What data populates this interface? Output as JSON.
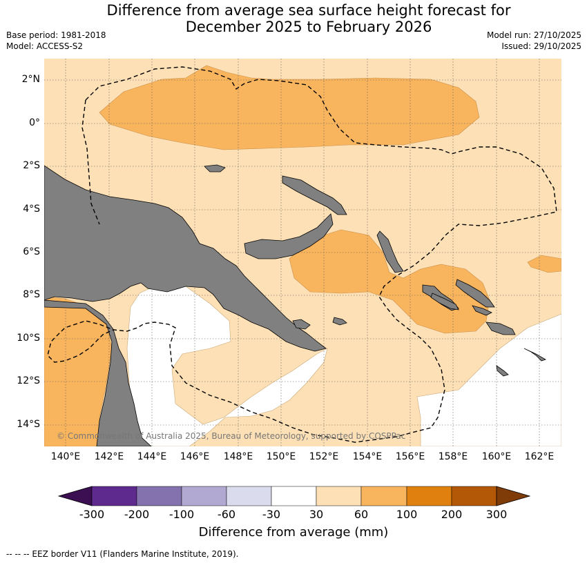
{
  "header": {
    "title_line1": "Difference from average sea surface height forecast for",
    "title_line2": "December 2025 to February 2026",
    "base_period": "Base period: 1981-2018",
    "model": "Model: ACCESS-S2",
    "model_run": "Model run: 27/10/2025",
    "issued": "Issued: 29/10/2025"
  },
  "map": {
    "lat_labels": [
      "2°N",
      "0°",
      "2°S",
      "4°S",
      "6°S",
      "8°S",
      "10°S",
      "12°S",
      "14°S"
    ],
    "lon_labels": [
      "140°E",
      "142°E",
      "144°E",
      "146°E",
      "148°E",
      "150°E",
      "152°E",
      "154°E",
      "156°E",
      "158°E",
      "160°E",
      "162°E"
    ],
    "copyright": "© Commonwealth of Australia 2025, Bureau of Meteorology, supported by COSPPac",
    "colors": {
      "land": "#808080",
      "band_30_60": "#fde0b5",
      "band_60_100": "#f9b45e",
      "band_neutral": "#ffffff"
    }
  },
  "colorbar": {
    "ticks": [
      "-300",
      "-200",
      "-100",
      "-60",
      "-30",
      "30",
      "60",
      "100",
      "200",
      "300"
    ],
    "colors": [
      "#3c0f52",
      "#5e2a8e",
      "#8472ae",
      "#b2a9d3",
      "#dadbed",
      "#ffffff",
      "#fde0b5",
      "#f9b45e",
      "#e0810f",
      "#b35806",
      "#7f3b08"
    ],
    "title": "Difference from average (mm)"
  },
  "footnote": "--  --  -- EEZ border V11 (Flanders Marine Institute, 2019)."
}
